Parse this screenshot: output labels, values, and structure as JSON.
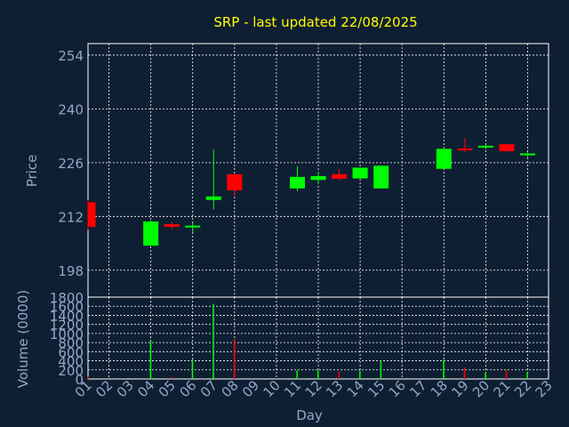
{
  "chart_data": [
    {
      "type": "candlestick",
      "title": "SRP - last updated 22/08/2025",
      "xlabel": "Day",
      "ylabel": "Price",
      "ylim": [
        191,
        257
      ],
      "yticks": [
        "198",
        "212",
        "226",
        "240",
        "254"
      ],
      "x": [
        "01",
        "02",
        "03",
        "04",
        "05",
        "06",
        "07",
        "08",
        "09",
        "10",
        "11",
        "12",
        "13",
        "14",
        "15",
        "16",
        "17",
        "18",
        "19",
        "20",
        "21",
        "22",
        "23"
      ],
      "candles": [
        {
          "day": "01",
          "open": 215.7,
          "high": 216.2,
          "low": 208.5,
          "close": 209.3
        },
        {
          "day": "04",
          "open": 204.4,
          "high": 210.9,
          "low": 204.4,
          "close": 210.7
        },
        {
          "day": "05",
          "open": 210.0,
          "high": 210.6,
          "low": 208.6,
          "close": 209.3
        },
        {
          "day": "06",
          "open": 209.3,
          "high": 210.3,
          "low": 207.9,
          "close": 209.6
        },
        {
          "day": "07",
          "open": 216.3,
          "high": 229.4,
          "low": 213.8,
          "close": 217.2
        },
        {
          "day": "08",
          "open": 223.0,
          "high": 223.0,
          "low": 217.5,
          "close": 218.8
        },
        {
          "day": "11",
          "open": 219.3,
          "high": 225.1,
          "low": 218.6,
          "close": 222.3
        },
        {
          "day": "12",
          "open": 221.5,
          "high": 223.6,
          "low": 220.5,
          "close": 222.5
        },
        {
          "day": "13",
          "open": 223.0,
          "high": 224.4,
          "low": 221.4,
          "close": 221.8
        },
        {
          "day": "14",
          "open": 221.9,
          "high": 224.7,
          "low": 221.9,
          "close": 224.7
        },
        {
          "day": "15",
          "open": 219.3,
          "high": 225.2,
          "low": 219.3,
          "close": 225.2
        },
        {
          "day": "18",
          "open": 224.4,
          "high": 229.6,
          "low": 224.4,
          "close": 229.6
        },
        {
          "day": "19",
          "open": 229.7,
          "high": 232.4,
          "low": 228.6,
          "close": 229.4
        },
        {
          "day": "20",
          "open": 230.1,
          "high": 230.7,
          "low": 229.5,
          "close": 230.4
        },
        {
          "day": "21",
          "open": 230.8,
          "high": 230.8,
          "low": 228.8,
          "close": 229.0
        },
        {
          "day": "22",
          "open": 228.2,
          "high": 228.7,
          "low": 227.5,
          "close": 228.4
        }
      ],
      "up_color": "#00ff00",
      "down_color": "#ff0000",
      "grid": true
    },
    {
      "type": "bar",
      "ylabel": "Volume (0000)",
      "xlabel": "Day",
      "ylim": [
        0,
        1800
      ],
      "yticks": [
        "0",
        "200",
        "400",
        "600",
        "800",
        "1000",
        "1200",
        "1400",
        "1600",
        "1800"
      ],
      "x": [
        "01",
        "02",
        "03",
        "04",
        "05",
        "06",
        "07",
        "08",
        "09",
        "10",
        "11",
        "12",
        "13",
        "14",
        "15",
        "16",
        "17",
        "18",
        "19",
        "20",
        "21",
        "22",
        "23"
      ],
      "values": [
        {
          "day": "01",
          "volume": 50,
          "color": "#ff0000"
        },
        {
          "day": "04",
          "volume": 850,
          "color": "#00ff00"
        },
        {
          "day": "05",
          "volume": 40,
          "color": "#ff0000"
        },
        {
          "day": "06",
          "volume": 430,
          "color": "#00ff00"
        },
        {
          "day": "07",
          "volume": 1650,
          "color": "#00ff00"
        },
        {
          "day": "08",
          "volume": 880,
          "color": "#ff0000"
        },
        {
          "day": "11",
          "volume": 190,
          "color": "#00ff00"
        },
        {
          "day": "12",
          "volume": 190,
          "color": "#00ff00"
        },
        {
          "day": "13",
          "volume": 170,
          "color": "#ff0000"
        },
        {
          "day": "14",
          "volume": 180,
          "color": "#00ff00"
        },
        {
          "day": "15",
          "volume": 400,
          "color": "#00ff00"
        },
        {
          "day": "18",
          "volume": 420,
          "color": "#00ff00"
        },
        {
          "day": "19",
          "volume": 250,
          "color": "#ff0000"
        },
        {
          "day": "20",
          "volume": 130,
          "color": "#00ff00"
        },
        {
          "day": "21",
          "volume": 190,
          "color": "#ff0000"
        },
        {
          "day": "22",
          "volume": 160,
          "color": "#00ff00"
        }
      ],
      "grid": true
    }
  ],
  "colors": {
    "background": "#0f1f33",
    "title": "#ffff00",
    "axis_text": "#8fa8c8",
    "grid": "#ffffff"
  }
}
